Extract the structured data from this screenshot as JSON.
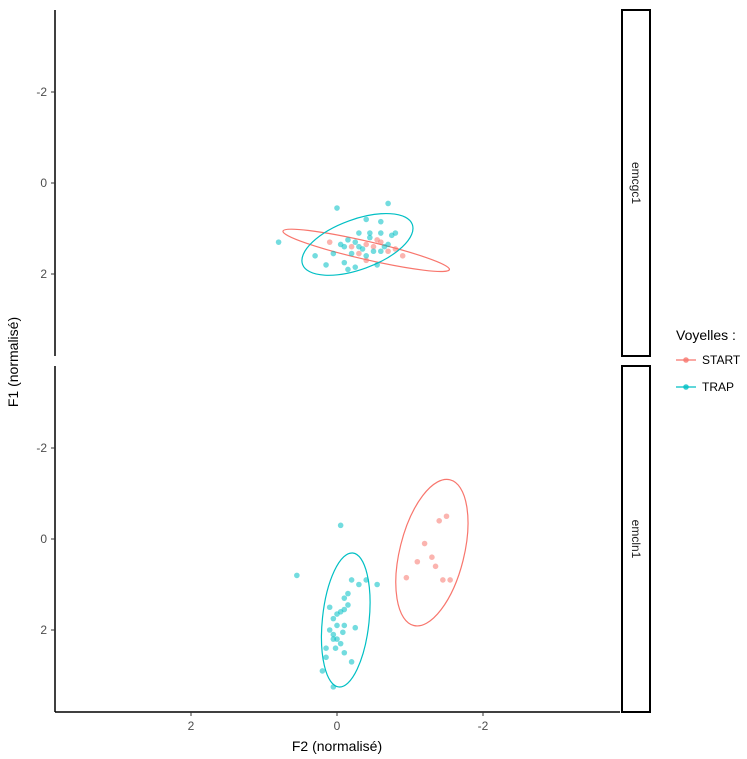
{
  "chart_data": {
    "type": "scatter",
    "xlabel": "F2 (normalisé)",
    "ylabel": "F1 (normalisé)",
    "x_reversed": true,
    "y_reversed": true,
    "xlim": [
      3.7,
      -3.7
    ],
    "ylim": [
      -3.8,
      3.8
    ],
    "xticks": [
      2,
      0,
      -2
    ],
    "yticks": [
      -2,
      0,
      2
    ],
    "grid": false,
    "legend": {
      "title": "Voyelles :",
      "position": "right",
      "entries": [
        {
          "label": "START",
          "color": "#F8766D"
        },
        {
          "label": "TRAP",
          "color": "#00BFC4"
        }
      ]
    },
    "panels": [
      {
        "strip": "emcgc1",
        "series": [
          {
            "name": "START",
            "color": "#F8766D",
            "points": [
              [
                -0.2,
                1.4
              ],
              [
                -0.4,
                1.35
              ],
              [
                -0.5,
                1.4
              ],
              [
                -0.6,
                1.3
              ],
              [
                -0.7,
                1.5
              ],
              [
                -0.8,
                1.45
              ],
              [
                -0.9,
                1.6
              ],
              [
                -0.3,
                1.55
              ],
              [
                -0.55,
                1.25
              ],
              [
                0.1,
                1.3
              ],
              [
                -0.4,
                1.7
              ]
            ],
            "ellipse": {
              "cx": -0.4,
              "cy": 1.48,
              "rx": 1.17,
              "ry": 0.2,
              "angle": 13
            }
          },
          {
            "name": "TRAP",
            "color": "#00BFC4",
            "points": [
              [
                0.8,
                1.3
              ],
              [
                -0.7,
                0.45
              ],
              [
                -0.6,
                0.85
              ],
              [
                -0.4,
                0.8
              ],
              [
                0,
                0.55
              ],
              [
                -0.75,
                1.15
              ],
              [
                -0.8,
                1.1
              ],
              [
                -0.3,
                1.1
              ],
              [
                -0.45,
                1.2
              ],
              [
                -0.6,
                1.1
              ],
              [
                -0.25,
                1.3
              ],
              [
                -0.15,
                1.25
              ],
              [
                -0.05,
                1.35
              ],
              [
                -0.1,
                1.4
              ],
              [
                -0.35,
                1.45
              ],
              [
                -0.5,
                1.5
              ],
              [
                -0.65,
                1.4
              ],
              [
                -0.7,
                1.35
              ],
              [
                0.05,
                1.55
              ],
              [
                -0.2,
                1.55
              ],
              [
                -0.4,
                1.6
              ],
              [
                0.3,
                1.6
              ],
              [
                -0.1,
                1.75
              ],
              [
                -0.25,
                1.85
              ],
              [
                -0.55,
                1.8
              ],
              [
                0.15,
                1.8
              ],
              [
                -0.15,
                1.9
              ],
              [
                -0.3,
                1.4
              ],
              [
                -0.45,
                1.1
              ],
              [
                -0.6,
                1.5
              ]
            ],
            "ellipse": {
              "cx": -0.28,
              "cy": 1.35,
              "rx": 0.8,
              "ry": 0.55,
              "angle": -20
            }
          }
        ]
      },
      {
        "strip": "emcln1",
        "series": [
          {
            "name": "START",
            "color": "#F8766D",
            "points": [
              [
                -1.4,
                -0.4
              ],
              [
                -1.5,
                -0.5
              ],
              [
                -1.2,
                0.1
              ],
              [
                -1.3,
                0.4
              ],
              [
                -1.35,
                0.6
              ],
              [
                -1.1,
                0.5
              ],
              [
                -0.95,
                0.85
              ],
              [
                -1.45,
                0.9
              ],
              [
                -1.55,
                0.9
              ]
            ],
            "ellipse": {
              "cx": -1.3,
              "cy": 0.3,
              "rx": 0.44,
              "ry": 1.65,
              "angle": 14
            }
          },
          {
            "name": "TRAP",
            "color": "#00BFC4",
            "points": [
              [
                -0.05,
                -0.3
              ],
              [
                0.55,
                0.8
              ],
              [
                -0.4,
                0.9
              ],
              [
                -0.3,
                1.0
              ],
              [
                -0.2,
                0.9
              ],
              [
                -0.1,
                1.3
              ],
              [
                -0.15,
                1.45
              ],
              [
                -0.05,
                1.6
              ],
              [
                0.05,
                1.75
              ],
              [
                0.0,
                1.9
              ],
              [
                -0.1,
                1.9
              ],
              [
                0.05,
                2.2
              ],
              [
                -0.05,
                2.3
              ],
              [
                0.15,
                2.4
              ],
              [
                0.1,
                2.0
              ],
              [
                -0.1,
                2.5
              ],
              [
                0.15,
                2.6
              ],
              [
                0.0,
                2.2
              ],
              [
                -0.1,
                1.55
              ],
              [
                0.1,
                1.5
              ],
              [
                -0.15,
                1.2
              ],
              [
                0.2,
                2.9
              ],
              [
                0.02,
                2.4
              ],
              [
                -0.08,
                2.05
              ],
              [
                0.0,
                1.65
              ],
              [
                0.05,
                3.25
              ],
              [
                0.05,
                2.1
              ],
              [
                -0.2,
                2.7
              ],
              [
                -0.25,
                1.95
              ],
              [
                -0.55,
                1.0
              ]
            ],
            "ellipse": {
              "cx": -0.12,
              "cy": 1.78,
              "rx": 0.32,
              "ry": 1.48,
              "angle": 6
            }
          }
        ]
      }
    ]
  }
}
